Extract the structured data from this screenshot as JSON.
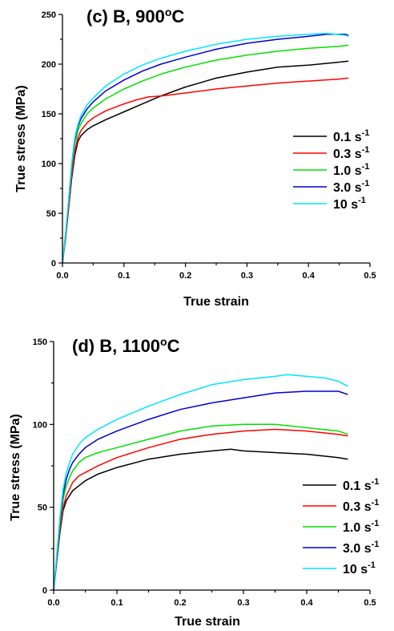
{
  "chart_data": [
    {
      "type": "line",
      "panel": "c",
      "title": "(c) B, 900",
      "title_sup": "o",
      "title_unit": "C",
      "xlabel": "True strain",
      "ylabel": "True stress (MPa)",
      "xlim": [
        0.0,
        0.5
      ],
      "ylim": [
        0,
        250
      ],
      "xticks": [
        "0.0",
        "0.1",
        "0.2",
        "0.3",
        "0.4",
        "0.5"
      ],
      "yticks": [
        "0",
        "50",
        "100",
        "150",
        "200",
        "250"
      ],
      "legend_position": "right",
      "series": [
        {
          "name": "0.1 s",
          "exp": "-1",
          "color": "#000000",
          "x": [
            0,
            0.005,
            0.01,
            0.015,
            0.02,
            0.025,
            0.03,
            0.04,
            0.05,
            0.07,
            0.1,
            0.13,
            0.16,
            0.2,
            0.25,
            0.3,
            0.35,
            0.4,
            0.45,
            0.465
          ],
          "y": [
            0,
            25,
            55,
            85,
            108,
            122,
            128,
            134,
            138,
            144,
            152,
            160,
            168,
            177,
            186,
            192,
            197,
            199,
            202,
            203
          ]
        },
        {
          "name": "0.3 s",
          "exp": "-1",
          "color": "#ff0000",
          "x": [
            0,
            0.005,
            0.01,
            0.015,
            0.02,
            0.025,
            0.03,
            0.04,
            0.05,
            0.07,
            0.1,
            0.12,
            0.14,
            0.16,
            0.2,
            0.25,
            0.3,
            0.35,
            0.4,
            0.45,
            0.465
          ],
          "y": [
            0,
            25,
            55,
            88,
            112,
            126,
            133,
            141,
            146,
            153,
            160,
            164,
            167,
            168,
            171,
            175,
            178,
            181,
            183,
            185,
            186
          ]
        },
        {
          "name": "1.0 s",
          "exp": "-1",
          "color": "#00e000",
          "x": [
            0,
            0.005,
            0.01,
            0.015,
            0.02,
            0.025,
            0.03,
            0.04,
            0.05,
            0.07,
            0.1,
            0.13,
            0.16,
            0.2,
            0.25,
            0.3,
            0.35,
            0.4,
            0.45,
            0.465
          ],
          "y": [
            0,
            28,
            60,
            95,
            120,
            133,
            140,
            150,
            156,
            165,
            175,
            183,
            190,
            197,
            204,
            209,
            213,
            216,
            218,
            219
          ]
        },
        {
          "name": "3.0 s",
          "exp": "-1",
          "color": "#0000cc",
          "x": [
            0,
            0.005,
            0.01,
            0.015,
            0.02,
            0.025,
            0.03,
            0.04,
            0.05,
            0.07,
            0.1,
            0.13,
            0.16,
            0.2,
            0.25,
            0.3,
            0.35,
            0.4,
            0.43,
            0.46,
            0.465
          ],
          "y": [
            0,
            28,
            62,
            98,
            124,
            137,
            145,
            155,
            162,
            173,
            184,
            193,
            200,
            207,
            215,
            221,
            225,
            228,
            230,
            230,
            229
          ]
        },
        {
          "name": "10 s",
          "exp": "-1",
          "color": "#00e5ff",
          "x": [
            0,
            0.005,
            0.01,
            0.015,
            0.02,
            0.025,
            0.03,
            0.04,
            0.05,
            0.07,
            0.1,
            0.13,
            0.16,
            0.2,
            0.25,
            0.3,
            0.35,
            0.4,
            0.43,
            0.46,
            0.465
          ],
          "y": [
            0,
            29,
            64,
            100,
            126,
            139,
            148,
            159,
            166,
            178,
            190,
            199,
            206,
            213,
            220,
            225,
            228,
            230,
            231,
            229,
            228
          ]
        }
      ]
    },
    {
      "type": "line",
      "panel": "d",
      "title": "(d) B, 1100",
      "title_sup": "o",
      "title_unit": "C",
      "xlabel": "True strain",
      "ylabel": "True stress (MPa)",
      "xlim": [
        0.0,
        0.5
      ],
      "ylim": [
        0,
        150
      ],
      "xticks": [
        "0.0",
        "0.1",
        "0.2",
        "0.3",
        "0.4",
        "0.5"
      ],
      "yticks": [
        "0",
        "50",
        "100",
        "150"
      ],
      "legend_position": "right",
      "series": [
        {
          "name": "0.1 s",
          "exp": "-1",
          "color": "#000000",
          "x": [
            0,
            0.005,
            0.01,
            0.015,
            0.02,
            0.025,
            0.03,
            0.04,
            0.05,
            0.07,
            0.1,
            0.15,
            0.2,
            0.25,
            0.28,
            0.3,
            0.35,
            0.4,
            0.45,
            0.465
          ],
          "y": [
            0,
            18,
            35,
            48,
            54,
            57,
            60,
            63,
            66,
            70,
            74,
            79,
            82,
            84,
            85,
            84,
            83,
            82,
            80,
            79
          ]
        },
        {
          "name": "0.3 s",
          "exp": "-1",
          "color": "#ff0000",
          "x": [
            0,
            0.005,
            0.01,
            0.015,
            0.02,
            0.025,
            0.03,
            0.04,
            0.05,
            0.07,
            0.1,
            0.15,
            0.2,
            0.25,
            0.3,
            0.35,
            0.4,
            0.45,
            0.465
          ],
          "y": [
            0,
            19,
            37,
            50,
            57,
            61,
            65,
            69,
            71,
            75,
            80,
            86,
            91,
            94,
            96,
            97,
            96,
            94,
            93
          ]
        },
        {
          "name": "1.0 s",
          "exp": "-1",
          "color": "#00e000",
          "x": [
            0,
            0.005,
            0.01,
            0.015,
            0.02,
            0.025,
            0.03,
            0.04,
            0.05,
            0.07,
            0.1,
            0.15,
            0.2,
            0.25,
            0.3,
            0.35,
            0.4,
            0.45,
            0.465
          ],
          "y": [
            0,
            20,
            40,
            55,
            63,
            68,
            72,
            77,
            80,
            83,
            86,
            91,
            96,
            99,
            100,
            100,
            98,
            96,
            94
          ]
        },
        {
          "name": "3.0 s",
          "exp": "-1",
          "color": "#0000cc",
          "x": [
            0,
            0.005,
            0.01,
            0.015,
            0.02,
            0.025,
            0.03,
            0.04,
            0.05,
            0.07,
            0.1,
            0.15,
            0.2,
            0.25,
            0.3,
            0.35,
            0.4,
            0.43,
            0.45,
            0.465
          ],
          "y": [
            0,
            21,
            42,
            58,
            67,
            73,
            77,
            82,
            86,
            91,
            96,
            103,
            109,
            113,
            116,
            119,
            120,
            120,
            120,
            118
          ]
        },
        {
          "name": "10 s",
          "exp": "-1",
          "color": "#00e5ff",
          "x": [
            0,
            0.005,
            0.01,
            0.015,
            0.02,
            0.025,
            0.03,
            0.04,
            0.05,
            0.07,
            0.1,
            0.15,
            0.2,
            0.25,
            0.3,
            0.35,
            0.37,
            0.4,
            0.43,
            0.45,
            0.465
          ],
          "y": [
            0,
            22,
            44,
            61,
            71,
            77,
            82,
            88,
            92,
            97,
            103,
            111,
            118,
            124,
            127,
            129,
            130,
            129,
            128,
            126,
            123
          ]
        }
      ]
    }
  ]
}
